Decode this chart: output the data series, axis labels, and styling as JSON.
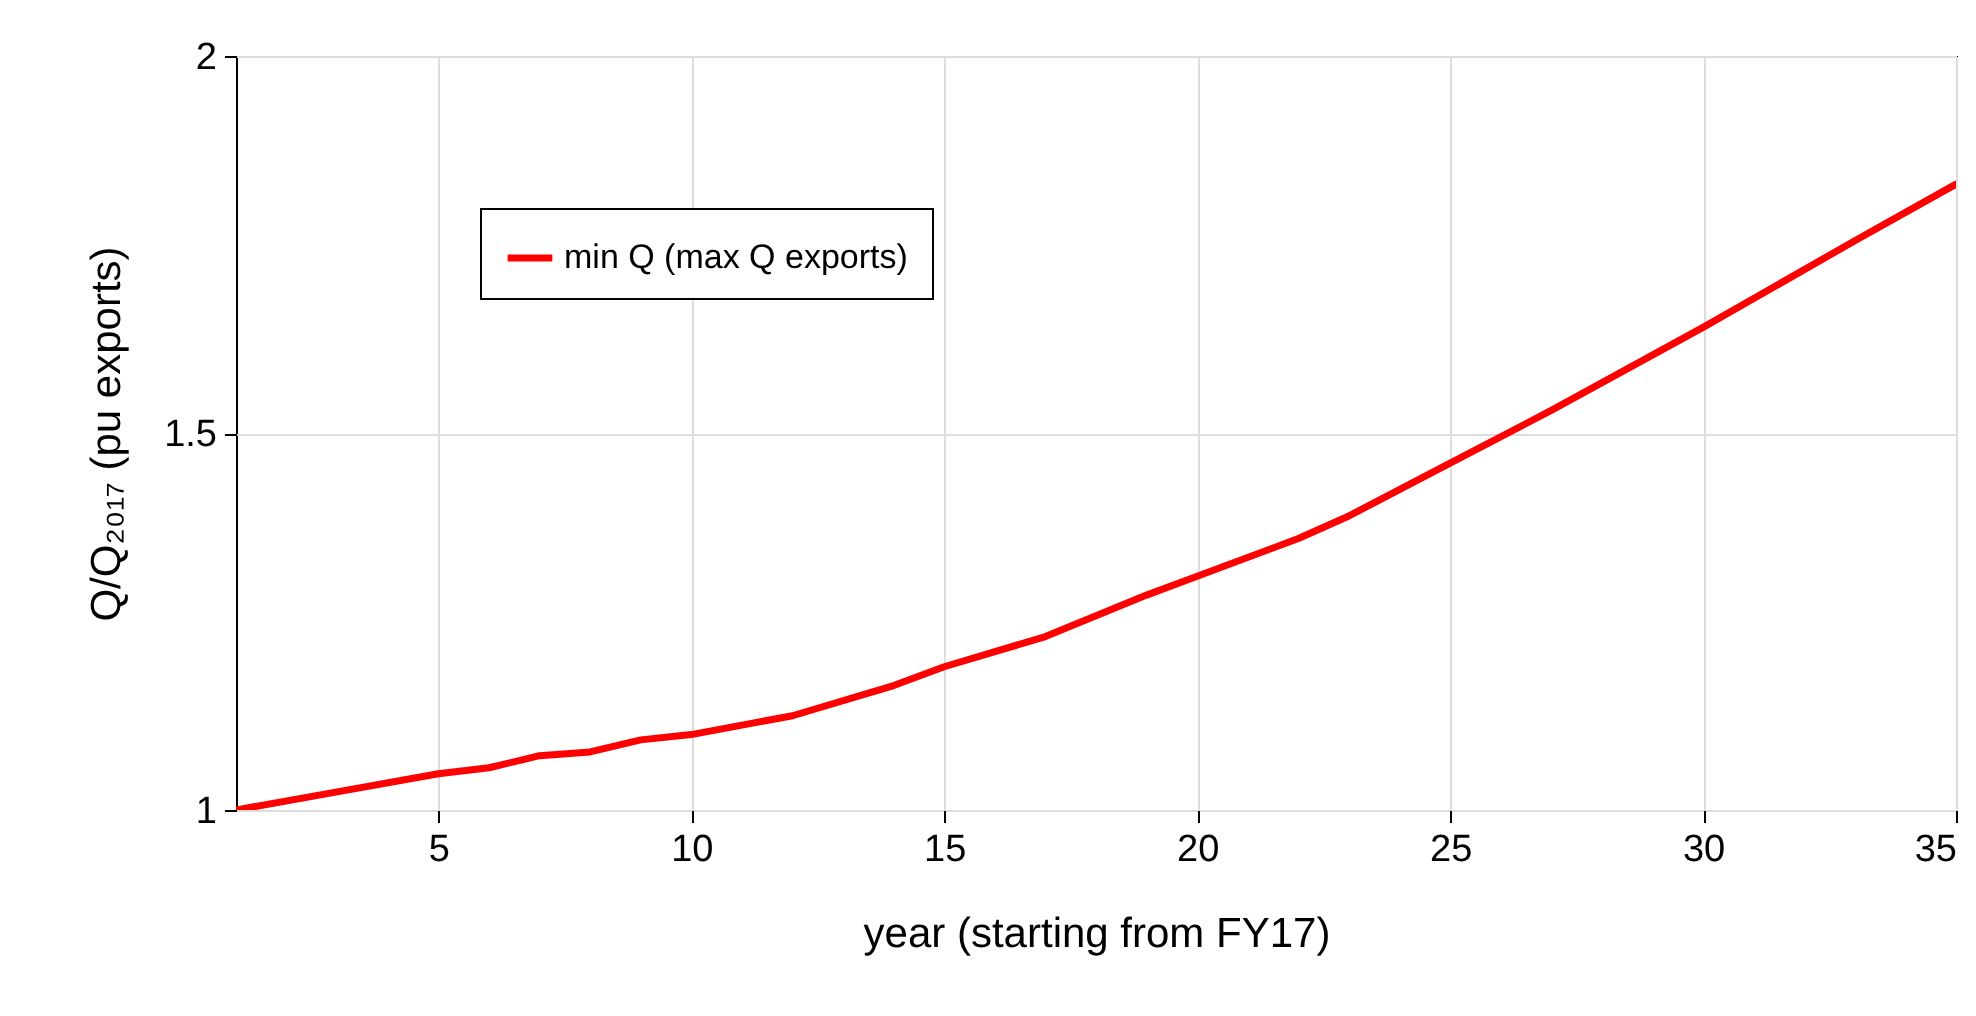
{
  "chart_data": {
    "type": "line",
    "xlabel": "year (starting from FY17)",
    "ylabel": "Q/Q₂₀₁₇ (pu exports)",
    "x": [
      1,
      3,
      5,
      6,
      7,
      8,
      9,
      10,
      12,
      14,
      15,
      17,
      19,
      20,
      22,
      23,
      25,
      27,
      30,
      33,
      35
    ],
    "series": [
      {
        "name": "min Q (max Q exports)",
        "color": "#ff0000",
        "values": [
          1.0,
          1.024,
          1.048,
          1.056,
          1.072,
          1.077,
          1.093,
          1.1,
          1.125,
          1.165,
          1.19,
          1.23,
          1.285,
          1.31,
          1.36,
          1.39,
          1.46,
          1.53,
          1.64,
          1.755,
          1.83
        ]
      }
    ],
    "xlim": [
      1,
      35
    ],
    "xticks": [
      5,
      10,
      15,
      20,
      25,
      30,
      35
    ],
    "ylim": [
      1,
      2
    ],
    "yticks": [
      1,
      1.5,
      2
    ],
    "grid": true,
    "legend": "top left",
    "line_style": "solid",
    "marker": "none"
  }
}
